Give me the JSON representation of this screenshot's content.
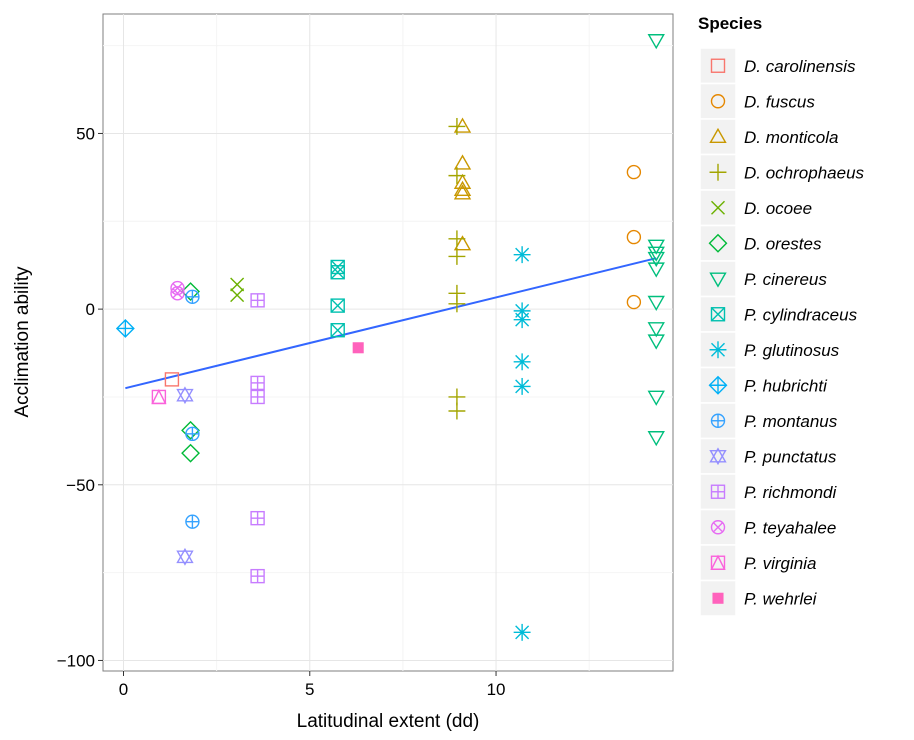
{
  "chart_data": {
    "type": "scatter",
    "xlabel": "Latitudinal extent (dd)",
    "ylabel": "Acclimation ability",
    "xlim": [
      -0.55,
      14.75
    ],
    "ylim": [
      -103,
      84
    ],
    "x_ticks": [
      0,
      5,
      10
    ],
    "y_ticks": [
      -100,
      -50,
      0,
      50
    ],
    "x_tick_labels": [
      "0",
      "5",
      "10"
    ],
    "y_tick_labels": [
      "−100",
      "−50",
      "0",
      "50"
    ],
    "grid": true,
    "legend_title": "Species",
    "legend_position": "right",
    "series": [
      {
        "name": "D. carolinensis",
        "shape": "square-open",
        "color": "#F8766D",
        "points": [
          [
            1.3,
            -20
          ]
        ]
      },
      {
        "name": "D. fuscus",
        "shape": "circle-open",
        "color": "#E58700",
        "points": [
          [
            13.7,
            39
          ],
          [
            13.7,
            20.5
          ],
          [
            13.7,
            2
          ]
        ]
      },
      {
        "name": "D. monticola",
        "shape": "triangle-open",
        "color": "#C99800",
        "points": [
          [
            9.1,
            52
          ],
          [
            9.1,
            41.5
          ],
          [
            9.1,
            36
          ],
          [
            9.1,
            34
          ],
          [
            9.1,
            33
          ],
          [
            9.1,
            18.5
          ]
        ]
      },
      {
        "name": "D. ochrophaeus",
        "shape": "plus",
        "color": "#A3A500",
        "points": [
          [
            8.95,
            52
          ],
          [
            8.95,
            38
          ],
          [
            8.95,
            20
          ],
          [
            8.95,
            15
          ],
          [
            8.95,
            4.5
          ],
          [
            8.95,
            1.5
          ],
          [
            8.95,
            -25
          ],
          [
            8.95,
            -29
          ]
        ]
      },
      {
        "name": "D. ocoee",
        "shape": "cross",
        "color": "#6BB100",
        "points": [
          [
            3.05,
            7
          ],
          [
            3.05,
            4
          ]
        ]
      },
      {
        "name": "D. orestes",
        "shape": "diamond-open",
        "color": "#00BA38",
        "points": [
          [
            1.8,
            5
          ],
          [
            1.8,
            -34.5
          ],
          [
            1.8,
            -41
          ]
        ]
      },
      {
        "name": "P. cinereus",
        "shape": "triangle-down-open",
        "color": "#00BF7D",
        "points": [
          [
            14.3,
            76.5
          ],
          [
            14.3,
            18
          ],
          [
            14.3,
            16
          ],
          [
            14.3,
            14.5
          ],
          [
            14.3,
            11.5
          ],
          [
            14.3,
            2
          ],
          [
            14.3,
            -5.5
          ],
          [
            14.3,
            -9
          ],
          [
            14.3,
            -25
          ],
          [
            14.3,
            -36.5
          ]
        ]
      },
      {
        "name": "P. cylindraceus",
        "shape": "square-cross",
        "color": "#00C0AF",
        "points": [
          [
            5.75,
            12
          ],
          [
            5.75,
            10.5
          ],
          [
            5.75,
            1
          ],
          [
            5.75,
            -6
          ]
        ]
      },
      {
        "name": "P. glutinosus",
        "shape": "asterisk",
        "color": "#00BCD8",
        "points": [
          [
            10.7,
            15.5
          ],
          [
            10.7,
            -0.5
          ],
          [
            10.7,
            -3
          ],
          [
            10.7,
            -15
          ],
          [
            10.7,
            -22
          ],
          [
            10.7,
            -92
          ]
        ]
      },
      {
        "name": "P. hubrichti",
        "shape": "diamond-plus",
        "color": "#00B0F6",
        "points": [
          [
            0.05,
            -5.5
          ]
        ]
      },
      {
        "name": "P. montanus",
        "shape": "circle-plus",
        "color": "#35A2FF",
        "points": [
          [
            1.85,
            3.5
          ],
          [
            1.85,
            -35.5
          ],
          [
            1.85,
            -60.5
          ]
        ]
      },
      {
        "name": "P. punctatus",
        "shape": "star-of-david",
        "color": "#9590FF",
        "points": [
          [
            1.65,
            -24.5
          ],
          [
            1.65,
            -70.5
          ]
        ]
      },
      {
        "name": "P. richmondi",
        "shape": "square-plus",
        "color": "#C77CFF",
        "points": [
          [
            3.6,
            2.5
          ],
          [
            3.6,
            -21
          ],
          [
            3.6,
            -25
          ],
          [
            3.6,
            -59.5
          ],
          [
            3.6,
            -76
          ]
        ]
      },
      {
        "name": "P. teyahalee",
        "shape": "circle-cross",
        "color": "#E76BF3",
        "points": [
          [
            1.45,
            6
          ],
          [
            1.45,
            4.5
          ]
        ]
      },
      {
        "name": "P. virginia",
        "shape": "square-triangle",
        "color": "#FA62DB",
        "points": [
          [
            0.95,
            -25
          ]
        ]
      },
      {
        "name": "P. wehrlei",
        "shape": "square-filled",
        "color": "#FF62BC",
        "points": [
          [
            6.3,
            -11
          ]
        ]
      }
    ],
    "trendline": {
      "color": "#3366FF",
      "from": [
        0.05,
        -22.5
      ],
      "to": [
        14.3,
        14.5
      ]
    }
  }
}
